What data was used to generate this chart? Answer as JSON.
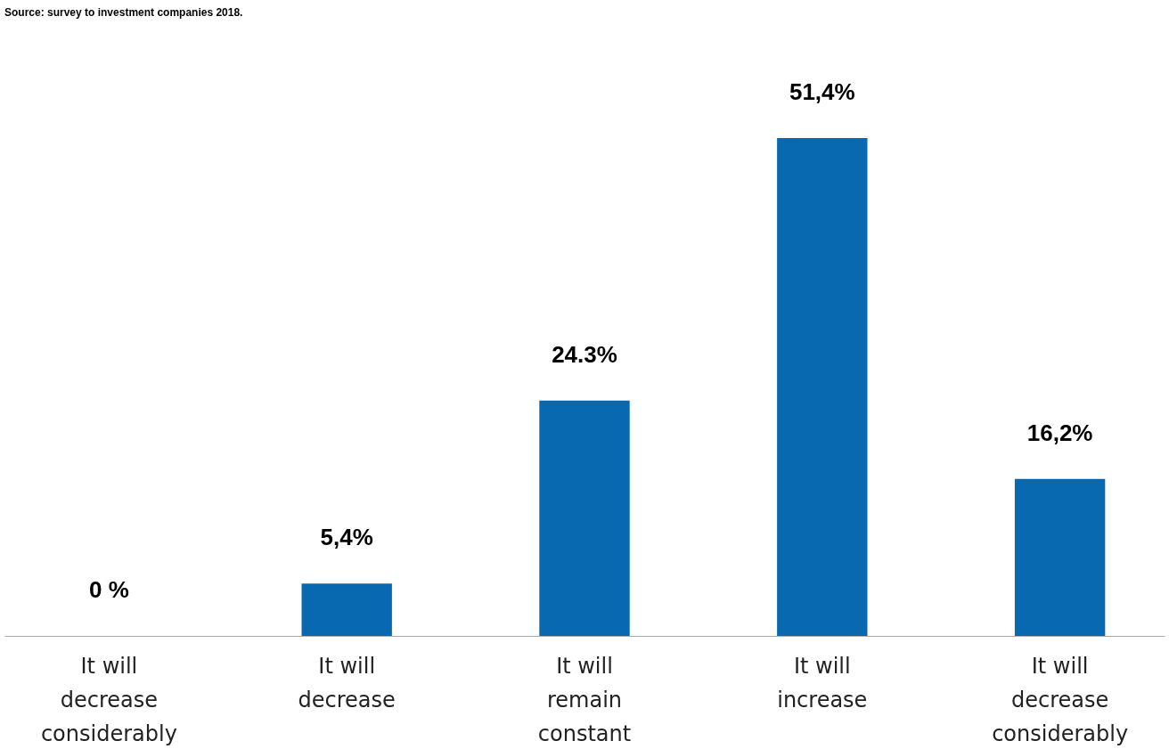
{
  "chart_data": {
    "type": "bar",
    "categories": [
      "It will decrease considerably",
      "It will decrease",
      "It will remain constant",
      "It will increase",
      "It will decrease considerably"
    ],
    "values": [
      0,
      5.4,
      24.3,
      51.4,
      16.2
    ],
    "value_labels": [
      "0 %",
      "5,4%",
      "24.3%",
      "51,4%",
      "16,2%"
    ],
    "color": "#0868b0",
    "annotations": [
      "Source: survey to investment companies 2018."
    ],
    "grid": false
  }
}
